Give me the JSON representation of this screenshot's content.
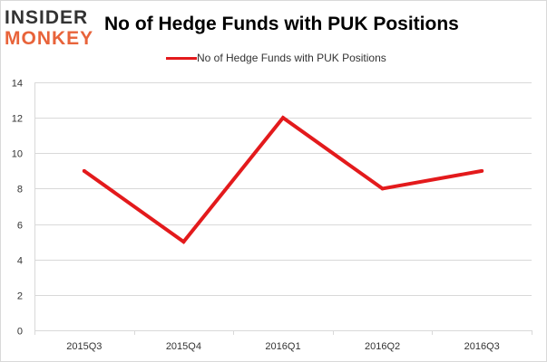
{
  "logo": {
    "line1": "INSIDER",
    "line2": "MONKEY"
  },
  "chart_data": {
    "type": "line",
    "title": "No of Hedge Funds with PUK Positions",
    "categories": [
      "2015Q3",
      "2015Q4",
      "2016Q1",
      "2016Q2",
      "2016Q3"
    ],
    "series": [
      {
        "name": "No of Hedge Funds with PUK Positions",
        "values": [
          9,
          5,
          12,
          8,
          9
        ],
        "color": "#e31a1c"
      }
    ],
    "xlabel": "",
    "ylabel": "",
    "ylim": [
      0,
      14
    ],
    "yticks": [
      0,
      2,
      4,
      6,
      8,
      10,
      12,
      14
    ],
    "grid": true,
    "legend_position": "top-center"
  }
}
